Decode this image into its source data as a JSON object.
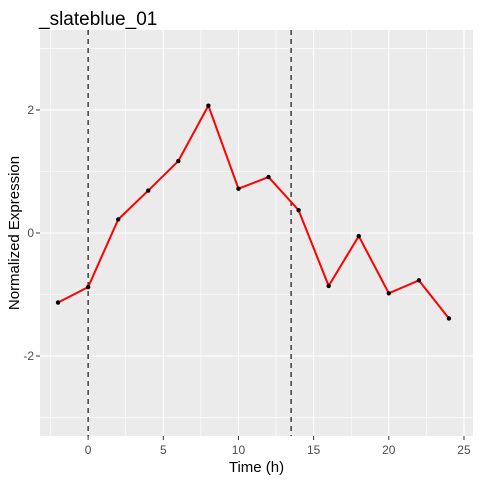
{
  "chart_data": {
    "type": "line",
    "title": "_slateblue_01",
    "xlabel": "Time (h)",
    "ylabel": "Normalized Expression",
    "xlim": [
      -3.2,
      25.6
    ],
    "ylim": [
      -3.3,
      3.3
    ],
    "x_ticks": [
      0,
      5,
      10,
      15,
      20,
      25
    ],
    "y_ticks": [
      -2,
      0,
      2
    ],
    "grid": true,
    "legend": "none",
    "vlines": [
      0,
      13.5
    ],
    "series": [
      {
        "color": "#ff0000",
        "points": [
          {
            "x": -2,
            "y": -1.13
          },
          {
            "x": 0,
            "y": -0.88
          },
          {
            "x": 2,
            "y": 0.22
          },
          {
            "x": 4,
            "y": 0.69
          },
          {
            "x": 6,
            "y": 1.17
          },
          {
            "x": 8,
            "y": 2.07
          },
          {
            "x": 10,
            "y": 0.72
          },
          {
            "x": 12,
            "y": 0.91
          },
          {
            "x": 14,
            "y": 0.37
          },
          {
            "x": 16,
            "y": -0.86
          },
          {
            "x": 18,
            "y": -0.05
          },
          {
            "x": 20,
            "y": -0.98
          },
          {
            "x": 22,
            "y": -0.77
          },
          {
            "x": 24,
            "y": -1.39
          }
        ]
      }
    ]
  },
  "colors": {
    "panel": "#ebebeb",
    "grid_major": "#ffffff",
    "line": "#ff0000",
    "point": "#000000",
    "vline": "#000000"
  }
}
